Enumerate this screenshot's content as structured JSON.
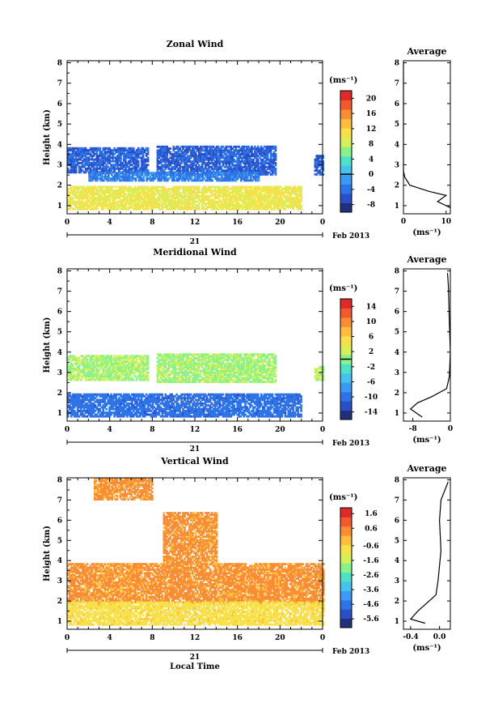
{
  "colors": {
    "scale": [
      "#20307a",
      "#2a4fc6",
      "#2f74e6",
      "#3b9af2",
      "#46c2ee",
      "#4fe0c8",
      "#8af28a",
      "#d6f05a",
      "#f7e04a",
      "#fdbd3e",
      "#f98d36",
      "#f05a2e",
      "#e02a2a"
    ]
  },
  "chart_data": [
    {
      "type": "heatmap",
      "title": "Zonal Wind",
      "ylabel": "Height (km)",
      "xlabel": "",
      "date_label": "Feb 2013",
      "day_label": "21",
      "x_ticks": [
        "0",
        "4",
        "8",
        "12",
        "16",
        "20",
        "0"
      ],
      "y_ticks": [
        "1",
        "2",
        "3",
        "4",
        "5",
        "6",
        "7",
        "8"
      ],
      "xlim": [
        0,
        24
      ],
      "ylim": [
        0.6,
        8.1
      ],
      "colorbar": {
        "unit": "(ms⁻¹)",
        "ticks": [
          "-8",
          "-4",
          "0",
          "4",
          "8",
          "12",
          "16",
          "20"
        ],
        "range": [
          -10,
          22
        ],
        "marker": 0
      },
      "regions": [
        {
          "x0": 0,
          "x1": 7.6,
          "y0": 2.6,
          "y1": 3.8,
          "value": -5
        },
        {
          "x0": 8.4,
          "x1": 19.6,
          "y0": 2.5,
          "y1": 3.9,
          "value": -5
        },
        {
          "x0": 23.2,
          "x1": 24,
          "y0": 2.5,
          "y1": 3.4,
          "value": -5
        },
        {
          "x0": 2,
          "x1": 18,
          "y0": 2.2,
          "y1": 2.6,
          "value": -3
        },
        {
          "x0": 0,
          "x1": 22,
          "y0": 0.8,
          "y1": 1.9,
          "value": 10
        }
      ],
      "profile": {
        "title": "Average",
        "xlabel": "(ms⁻¹)",
        "x_ticks": [
          "0",
          "10"
        ],
        "xlim": [
          0,
          11
        ],
        "x": [
          0,
          0,
          0,
          0.3,
          1.5,
          6,
          10,
          8,
          11
        ],
        "y": [
          8,
          4,
          2.7,
          2.4,
          2.0,
          1.7,
          1.5,
          1.2,
          0.9
        ]
      }
    },
    {
      "type": "heatmap",
      "title": "Meridional Wind",
      "ylabel": "Height (km)",
      "xlabel": "",
      "date_label": "Feb 2013",
      "day_label": "21",
      "x_ticks": [
        "0",
        "4",
        "8",
        "12",
        "16",
        "20",
        "0"
      ],
      "y_ticks": [
        "1",
        "2",
        "3",
        "4",
        "5",
        "6",
        "7",
        "8"
      ],
      "xlim": [
        0,
        24
      ],
      "ylim": [
        0.6,
        8.1
      ],
      "colorbar": {
        "unit": "(ms⁻¹)",
        "ticks": [
          "-14",
          "-10",
          "-6",
          "-2",
          "2",
          "6",
          "10",
          "14"
        ],
        "range": [
          -16,
          16
        ],
        "marker": 0
      },
      "regions": [
        {
          "x0": 0,
          "x1": 7.6,
          "y0": 2.6,
          "y1": 3.8,
          "value": 1
        },
        {
          "x0": 8.4,
          "x1": 19.6,
          "y0": 2.5,
          "y1": 3.9,
          "value": 1
        },
        {
          "x0": 23.2,
          "x1": 24,
          "y0": 2.6,
          "y1": 3.3,
          "value": 1
        },
        {
          "x0": 0,
          "x1": 22,
          "y0": 0.8,
          "y1": 1.9,
          "value": -10
        }
      ],
      "profile": {
        "title": "Average",
        "xlabel": "(ms⁻¹)",
        "x_ticks": [
          "-8",
          "0"
        ],
        "xlim": [
          -10,
          0
        ],
        "x": [
          -0.6,
          -0.4,
          -0.2,
          0,
          -0.2,
          -0.8,
          -4,
          -7,
          -8.5,
          -6
        ],
        "y": [
          7.9,
          7.2,
          5.5,
          4.0,
          2.8,
          2.2,
          1.8,
          1.5,
          1.2,
          0.8
        ]
      }
    },
    {
      "type": "heatmap",
      "title": "Vertical Wind",
      "ylabel": "Height (km)",
      "xlabel": "Local Time",
      "date_label": "Feb 2013",
      "day_label": "21",
      "x_ticks": [
        "0",
        "4",
        "8",
        "12",
        "16",
        "20",
        "0"
      ],
      "y_ticks": [
        "1",
        "2",
        "3",
        "4",
        "5",
        "6",
        "7",
        "8"
      ],
      "xlim": [
        0,
        24
      ],
      "ylim": [
        0.6,
        8.1
      ],
      "colorbar": {
        "unit": "(ms⁻¹)",
        "ticks": [
          "-5.6",
          "-4.6",
          "-3.6",
          "-2.6",
          "-1.6",
          "-0.6",
          "0.6",
          "1.6"
        ],
        "range": [
          -6.2,
          2.0
        ],
        "marker": null
      },
      "regions": [
        {
          "x0": 0,
          "x1": 24,
          "y0": 1.9,
          "y1": 3.8,
          "value": 0.3
        },
        {
          "x0": 0,
          "x1": 24,
          "y0": 0.8,
          "y1": 1.9,
          "value": -0.8
        },
        {
          "x0": 9,
          "x1": 14,
          "y0": 3.8,
          "y1": 6.4,
          "value": 0.3
        },
        {
          "x0": 2.5,
          "x1": 8,
          "y0": 7.0,
          "y1": 8.0,
          "value": 0.3
        }
      ],
      "profile": {
        "title": "Average",
        "xlabel": "(ms⁻¹)",
        "x_ticks": [
          "-0.4",
          "0.0"
        ],
        "xlim": [
          -0.5,
          0.15
        ],
        "x": [
          0.12,
          0.02,
          0.0,
          0.02,
          -0.02,
          -0.05,
          -0.3,
          -0.4,
          -0.2
        ],
        "y": [
          7.9,
          7.0,
          6.0,
          4.5,
          3.0,
          2.3,
          1.5,
          1.1,
          0.9
        ]
      }
    }
  ]
}
